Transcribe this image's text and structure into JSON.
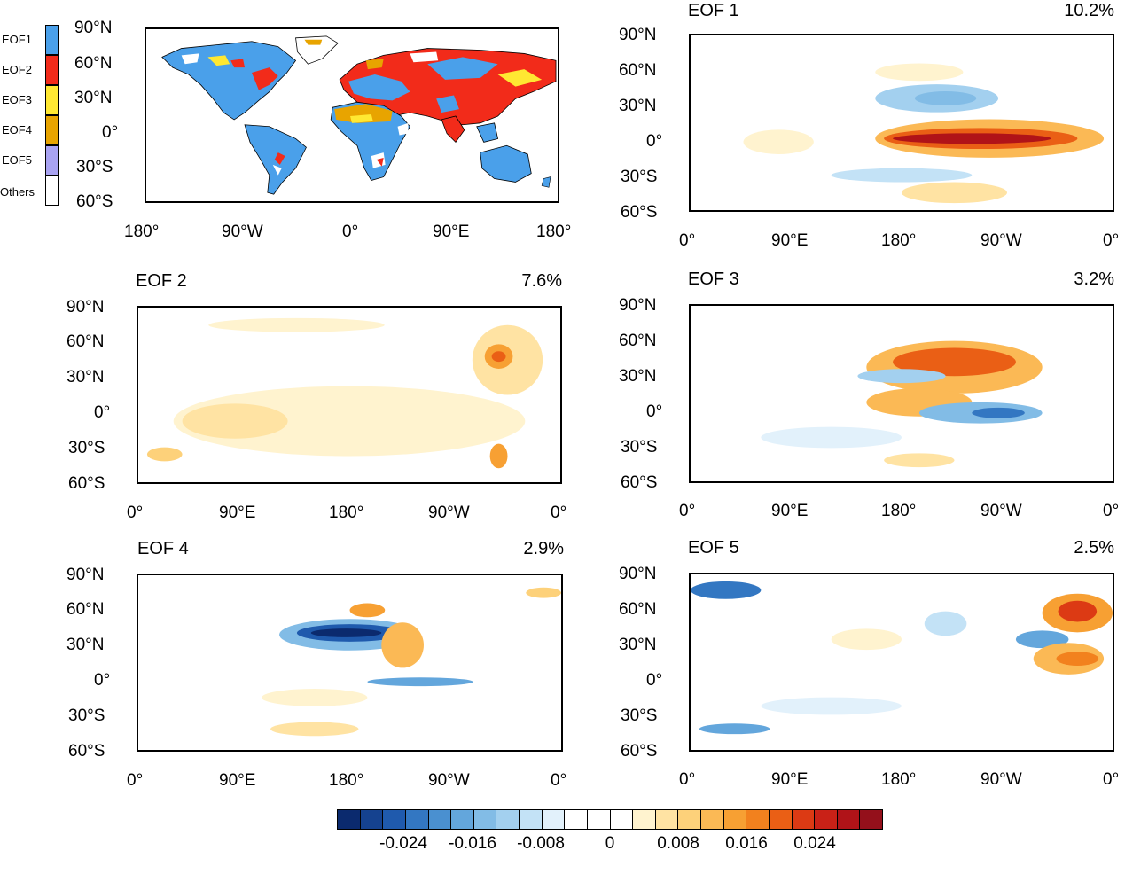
{
  "top_left": {
    "legend": [
      "EOF1",
      "EOF2",
      "EOF3",
      "EOF4",
      "EOF5",
      "Others"
    ],
    "legend_colors": [
      "#4aa0ea",
      "#f22b1a",
      "#ffe832",
      "#e8a400",
      "#a9a3f2",
      "#ffffff"
    ],
    "lat_labels": [
      "90°N",
      "60°N",
      "30°N",
      "0°",
      "30°S",
      "60°S"
    ],
    "lon_labels": [
      "180°",
      "90°W",
      "0°",
      "90°E",
      "180°"
    ]
  },
  "panels": [
    {
      "title": "EOF 1",
      "pct": "10.2%"
    },
    {
      "title": "EOF 2",
      "pct": "7.6%"
    },
    {
      "title": "EOF 3",
      "pct": "3.2%"
    },
    {
      "title": "EOF 4",
      "pct": "2.9%"
    },
    {
      "title": "EOF 5",
      "pct": "2.5%"
    }
  ],
  "eof_lat_labels": [
    "90°N",
    "60°N",
    "30°N",
    "0°",
    "30°S",
    "60°S"
  ],
  "eof_lon_labels": [
    "0°",
    "90°E",
    "180°",
    "90°W",
    "0°"
  ],
  "colorbar": {
    "colors": [
      "#0b2a6e",
      "#15428f",
      "#1f5aad",
      "#3377c2",
      "#4a90d0",
      "#63a6dc",
      "#82bce6",
      "#a3d0ef",
      "#c3e2f6",
      "#e2f1fb",
      "#ffffff",
      "#ffffff",
      "#ffffff",
      "#fff3cf",
      "#ffe3a3",
      "#fdd17a",
      "#fbb955",
      "#f7a033",
      "#f2811e",
      "#ea5f15",
      "#dc3a14",
      "#c92117",
      "#b01318",
      "#94101b"
    ],
    "tick_labels": [
      "-0.024",
      "-0.016",
      "-0.008",
      "0",
      "0.008",
      "0.016",
      "0.024"
    ]
  }
}
